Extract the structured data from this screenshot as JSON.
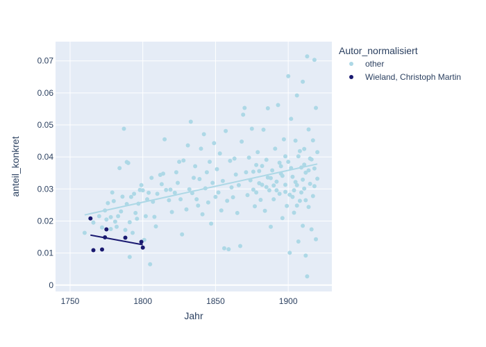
{
  "chart_data": {
    "type": "scatter",
    "xlabel": "Jahr",
    "ylabel": "anteil_konkret",
    "xlim": [
      1740,
      1930
    ],
    "ylim": [
      -0.002,
      0.076
    ],
    "x_ticks": [
      1750,
      1800,
      1850,
      1900
    ],
    "y_ticks": [
      0,
      0.01,
      0.02,
      0.03,
      0.04,
      0.05,
      0.06,
      0.07
    ],
    "x_tick_labels": [
      "1750",
      "1800",
      "1850",
      "1900"
    ],
    "y_tick_labels": [
      "0",
      "0.01",
      "0.02",
      "0.03",
      "0.04",
      "0.05",
      "0.06",
      "0.07"
    ],
    "grid": true,
    "legend": {
      "title": "Autor_normalisiert",
      "placement": "right"
    },
    "series": [
      {
        "name": "other",
        "color": "#add8e6",
        "trendline": {
          "x": [
            1760,
            1920
          ],
          "y": [
            0.0219,
            0.0378
          ]
        },
        "points": [
          [
            1760,
            0.0163
          ],
          [
            1766,
            0.0195
          ],
          [
            1770,
            0.0215
          ],
          [
            1772,
            0.018
          ],
          [
            1774,
            0.0233
          ],
          [
            1775,
            0.0205
          ],
          [
            1776,
            0.0256
          ],
          [
            1778,
            0.0175
          ],
          [
            1778,
            0.0212
          ],
          [
            1779,
            0.0289
          ],
          [
            1780,
            0.0262
          ],
          [
            1781,
            0.0198
          ],
          [
            1782,
            0.0182
          ],
          [
            1783,
            0.0215
          ],
          [
            1784,
            0.0365
          ],
          [
            1785,
            0.023
          ],
          [
            1786,
            0.0276
          ],
          [
            1787,
            0.0488
          ],
          [
            1788,
            0.0172
          ],
          [
            1789,
            0.0384
          ],
          [
            1789,
            0.0253
          ],
          [
            1790,
            0.0381
          ],
          [
            1791,
            0.0088
          ],
          [
            1791,
            0.0196
          ],
          [
            1792,
            0.0275
          ],
          [
            1793,
            0.0163
          ],
          [
            1794,
            0.0285
          ],
          [
            1795,
            0.0225
          ],
          [
            1796,
            0.0207
          ],
          [
            1797,
            0.0254
          ],
          [
            1798,
            0.0297
          ],
          [
            1799,
            0.0312
          ],
          [
            1800,
            0.0296
          ],
          [
            1801,
            0.0141
          ],
          [
            1802,
            0.0215
          ],
          [
            1803,
            0.0268
          ],
          [
            1804,
            0.0288
          ],
          [
            1805,
            0.0065
          ],
          [
            1806,
            0.0335
          ],
          [
            1807,
            0.026
          ],
          [
            1808,
            0.0213
          ],
          [
            1809,
            0.0183
          ],
          [
            1810,
            0.0285
          ],
          [
            1812,
            0.0344
          ],
          [
            1813,
            0.0315
          ],
          [
            1814,
            0.0348
          ],
          [
            1815,
            0.0455
          ],
          [
            1816,
            0.0297
          ],
          [
            1818,
            0.0265
          ],
          [
            1819,
            0.0298
          ],
          [
            1820,
            0.0228
          ],
          [
            1822,
            0.0288
          ],
          [
            1823,
            0.0352
          ],
          [
            1824,
            0.0319
          ],
          [
            1825,
            0.0385
          ],
          [
            1826,
            0.0268
          ],
          [
            1827,
            0.0158
          ],
          [
            1828,
            0.0389
          ],
          [
            1830,
            0.0236
          ],
          [
            1831,
            0.0436
          ],
          [
            1832,
            0.0299
          ],
          [
            1833,
            0.051
          ],
          [
            1834,
            0.0287
          ],
          [
            1835,
            0.0335
          ],
          [
            1836,
            0.0371
          ],
          [
            1837,
            0.0268
          ],
          [
            1838,
            0.0248
          ],
          [
            1839,
            0.0331
          ],
          [
            1840,
            0.0426
          ],
          [
            1841,
            0.0221
          ],
          [
            1842,
            0.0471
          ],
          [
            1843,
            0.0302
          ],
          [
            1844,
            0.0352
          ],
          [
            1845,
            0.0258
          ],
          [
            1846,
            0.0385
          ],
          [
            1847,
            0.0192
          ],
          [
            1848,
            0.0319
          ],
          [
            1849,
            0.0443
          ],
          [
            1850,
            0.0275
          ],
          [
            1851,
            0.0362
          ],
          [
            1852,
            0.0289
          ],
          [
            1853,
            0.0411
          ],
          [
            1854,
            0.0233
          ],
          [
            1855,
            0.0325
          ],
          [
            1856,
            0.0115
          ],
          [
            1857,
            0.0481
          ],
          [
            1858,
            0.0263
          ],
          [
            1859,
            0.0112
          ],
          [
            1860,
            0.0388
          ],
          [
            1861,
            0.0305
          ],
          [
            1862,
            0.0274
          ],
          [
            1863,
            0.0395
          ],
          [
            1864,
            0.0345
          ],
          [
            1865,
            0.0225
          ],
          [
            1866,
            0.0312
          ],
          [
            1867,
            0.0122
          ],
          [
            1868,
            0.0448
          ],
          [
            1869,
            0.0532
          ],
          [
            1870,
            0.0553
          ],
          [
            1871,
            0.0352
          ],
          [
            1872,
            0.0281
          ],
          [
            1873,
            0.0398
          ],
          [
            1874,
            0.0327
          ],
          [
            1875,
            0.0488
          ],
          [
            1876,
            0.0298
          ],
          [
            1877,
            0.0246
          ],
          [
            1878,
            0.0375
          ],
          [
            1879,
            0.0415
          ],
          [
            1880,
            0.0356
          ],
          [
            1881,
            0.0266
          ],
          [
            1882,
            0.0313
          ],
          [
            1883,
            0.0485
          ],
          [
            1884,
            0.0232
          ],
          [
            1885,
            0.0391
          ],
          [
            1886,
            0.0552
          ],
          [
            1887,
            0.0296
          ],
          [
            1888,
            0.0182
          ],
          [
            1889,
            0.0358
          ],
          [
            1890,
            0.0268
          ],
          [
            1891,
            0.0426
          ],
          [
            1892,
            0.0323
          ],
          [
            1893,
            0.0562
          ],
          [
            1894,
            0.0285
          ],
          [
            1895,
            0.0371
          ],
          [
            1896,
            0.0209
          ],
          [
            1897,
            0.0455
          ],
          [
            1898,
            0.0313
          ],
          [
            1899,
            0.0247
          ],
          [
            1900,
            0.0652
          ],
          [
            1900,
            0.0385
          ],
          [
            1901,
            0.0101
          ],
          [
            1901,
            0.0282
          ],
          [
            1902,
            0.0519
          ],
          [
            1903,
            0.0338
          ],
          [
            1904,
            0.0226
          ],
          [
            1905,
            0.0451
          ],
          [
            1906,
            0.0312
          ],
          [
            1906,
            0.0592
          ],
          [
            1907,
            0.0136
          ],
          [
            1907,
            0.0402
          ],
          [
            1908,
            0.0263
          ],
          [
            1909,
            0.0367
          ],
          [
            1910,
            0.0635
          ],
          [
            1910,
            0.0185
          ],
          [
            1911,
            0.0425
          ],
          [
            1911,
            0.0301
          ],
          [
            1912,
            0.0092
          ],
          [
            1912,
            0.0351
          ],
          [
            1913,
            0.0714
          ],
          [
            1913,
            0.0027
          ],
          [
            1914,
            0.0486
          ],
          [
            1914,
            0.0244
          ],
          [
            1915,
            0.0395
          ],
          [
            1915,
            0.0316
          ],
          [
            1916,
            0.0174
          ],
          [
            1917,
            0.0452
          ],
          [
            1917,
            0.0278
          ],
          [
            1918,
            0.0703
          ],
          [
            1918,
            0.0364
          ],
          [
            1919,
            0.0143
          ],
          [
            1919,
            0.0553
          ],
          [
            1920,
            0.0332
          ],
          [
            1920,
            0.0415
          ],
          [
            1895,
            0.0348
          ],
          [
            1898,
            0.0291
          ],
          [
            1903,
            0.0275
          ],
          [
            1905,
            0.0322
          ],
          [
            1908,
            0.0418
          ],
          [
            1909,
            0.0289
          ],
          [
            1912,
            0.0265
          ],
          [
            1914,
            0.0358
          ],
          [
            1916,
            0.0392
          ],
          [
            1918,
            0.0309
          ],
          [
            1885,
            0.0306
          ],
          [
            1888,
            0.0334
          ],
          [
            1892,
            0.0296
          ],
          [
            1896,
            0.0341
          ],
          [
            1902,
            0.0365
          ],
          [
            1906,
            0.0248
          ],
          [
            1910,
            0.0329
          ],
          [
            1880,
            0.0318
          ],
          [
            1878,
            0.0289
          ],
          [
            1876,
            0.0354
          ],
          [
            1882,
            0.0372
          ],
          [
            1886,
            0.0336
          ],
          [
            1890,
            0.0311
          ],
          [
            1894,
            0.0382
          ],
          [
            1898,
            0.0402
          ],
          [
            1904,
            0.0296
          ],
          [
            1911,
            0.0376
          ]
        ]
      },
      {
        "name": "Wieland, Christoph Martin",
        "color": "#191970",
        "trendline": {
          "x": [
            1764,
            1800
          ],
          "y": [
            0.0156,
            0.0126
          ]
        },
        "points": [
          [
            1764,
            0.0208
          ],
          [
            1766,
            0.0109
          ],
          [
            1772,
            0.0111
          ],
          [
            1774,
            0.0149
          ],
          [
            1775,
            0.0174
          ],
          [
            1788,
            0.0148
          ],
          [
            1799,
            0.0135
          ],
          [
            1800,
            0.0117
          ]
        ]
      }
    ]
  }
}
